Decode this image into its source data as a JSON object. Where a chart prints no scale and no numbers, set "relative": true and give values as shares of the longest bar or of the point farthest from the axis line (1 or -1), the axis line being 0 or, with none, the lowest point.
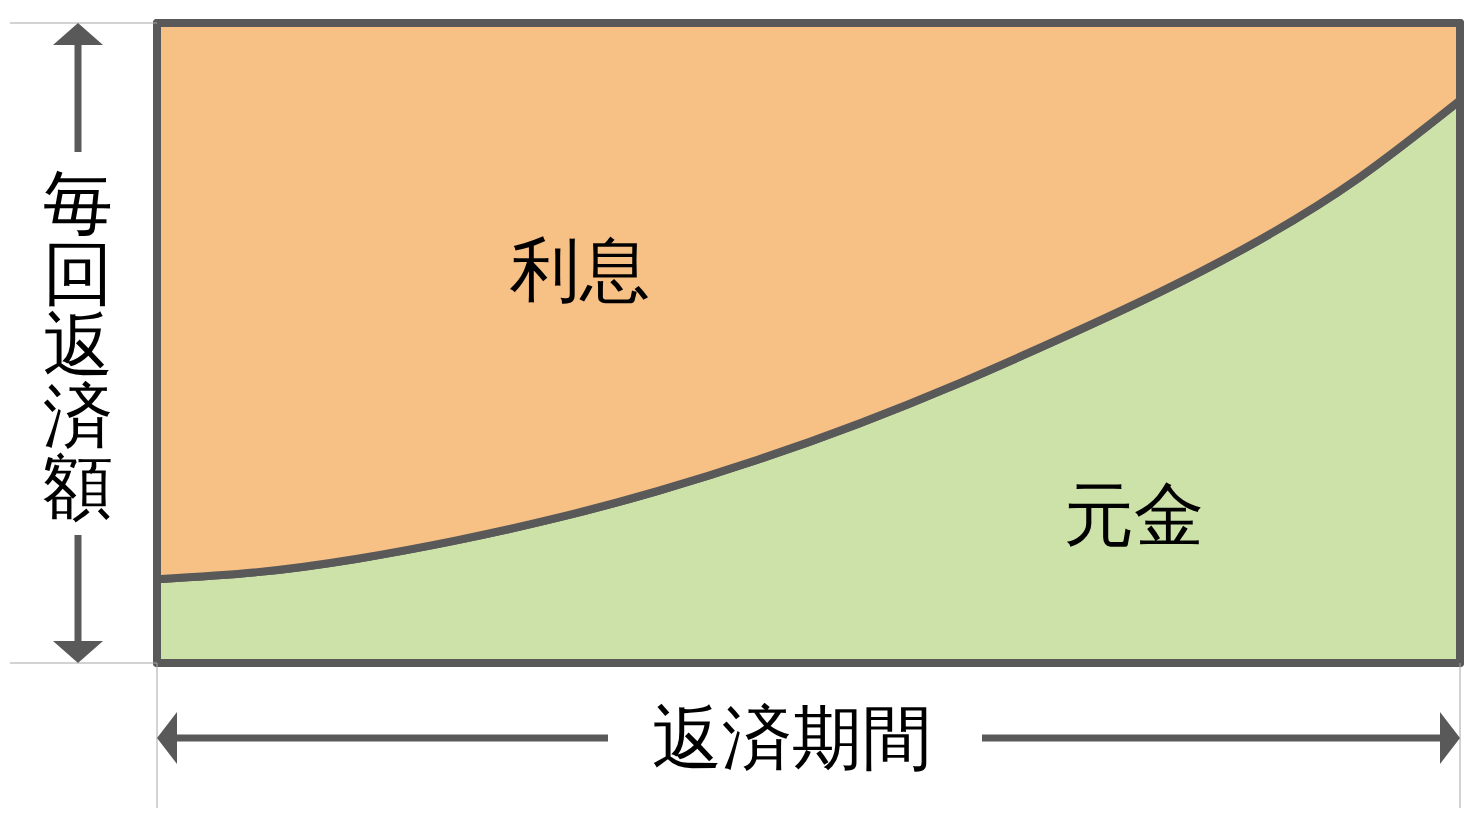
{
  "chart_data": {
    "type": "area",
    "stacked": true,
    "relative": true,
    "xlabel": "返済期間",
    "ylabel": "毎回返済額",
    "categories": [
      null,
      null,
      null,
      null,
      null,
      null,
      null,
      null,
      null,
      null,
      null,
      null,
      null,
      null
    ],
    "series": [
      {
        "name": "元金",
        "color": "#cde2a8",
        "values": [
          0.131,
          0.142,
          0.163,
          0.192,
          0.227,
          0.269,
          0.318,
          0.374,
          0.437,
          0.506,
          0.579,
          0.661,
          0.759,
          0.879
        ]
      },
      {
        "name": "利息",
        "color": "#f7c186",
        "values": [
          0.869,
          0.858,
          0.837,
          0.808,
          0.773,
          0.731,
          0.682,
          0.626,
          0.563,
          0.494,
          0.421,
          0.339,
          0.241,
          0.121
        ]
      }
    ]
  }
}
